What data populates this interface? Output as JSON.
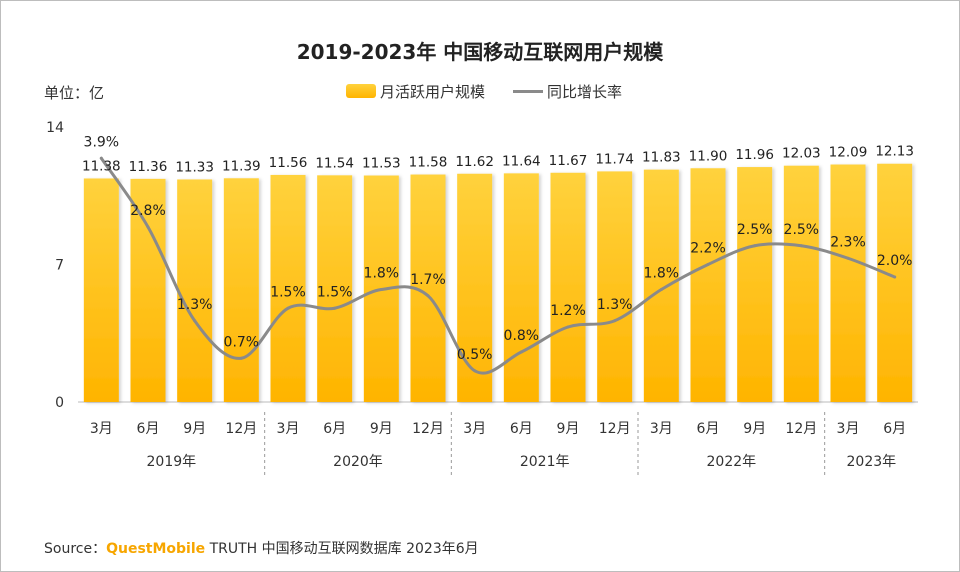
{
  "title": "2019-2023年 中国移动互联网用户规模",
  "unit_label": "单位：亿",
  "legend": {
    "bar_label": "月活跃用户规模",
    "line_label": "同比增长率"
  },
  "source": {
    "prefix": "Source：",
    "brand": "QuestMobile",
    "rest": " TRUTH 中国移动互联网数据库 2023年6月"
  },
  "colors": {
    "bar_top": "#ffd23d",
    "bar_bottom": "#ffb400",
    "line": "#8a8a8a",
    "brand": "#f7a600"
  },
  "chart_data": {
    "type": "bar",
    "categories": [
      "3月",
      "6月",
      "9月",
      "12月",
      "3月",
      "6月",
      "9月",
      "12月",
      "3月",
      "6月",
      "9月",
      "12月",
      "3月",
      "6月",
      "9月",
      "12月",
      "3月",
      "6月"
    ],
    "groups": [
      {
        "label": "2019年",
        "count": 4
      },
      {
        "label": "2020年",
        "count": 4
      },
      {
        "label": "2021年",
        "count": 4
      },
      {
        "label": "2022年",
        "count": 4
      },
      {
        "label": "2023年",
        "count": 2
      }
    ],
    "series": [
      {
        "name": "月活跃用户规模",
        "type": "bar",
        "values": [
          11.38,
          11.36,
          11.33,
          11.39,
          11.56,
          11.54,
          11.53,
          11.58,
          11.62,
          11.64,
          11.67,
          11.74,
          11.83,
          11.9,
          11.96,
          12.03,
          12.09,
          12.13
        ],
        "labels": [
          "11.38",
          "11.36",
          "11.33",
          "11.39",
          "11.56",
          "11.54",
          "11.53",
          "11.58",
          "11.62",
          "11.64",
          "11.67",
          "11.74",
          "11.83",
          "11.90",
          "11.96",
          "12.03",
          "12.09",
          "12.13"
        ]
      },
      {
        "name": "同比增长率",
        "type": "line",
        "values": [
          3.9,
          2.8,
          1.3,
          0.7,
          1.5,
          1.5,
          1.8,
          1.7,
          0.5,
          0.8,
          1.2,
          1.3,
          1.8,
          2.2,
          2.5,
          2.5,
          2.3,
          2.0
        ],
        "labels": [
          "3.9%",
          "2.8%",
          "1.3%",
          "0.7%",
          "1.5%",
          "1.5%",
          "1.8%",
          "1.7%",
          "0.5%",
          "0.8%",
          "1.2%",
          "1.3%",
          "1.8%",
          "2.2%",
          "2.5%",
          "2.5%",
          "2.3%",
          "2.0%"
        ]
      }
    ],
    "y_ticks": [
      "0",
      "7",
      "14"
    ],
    "ylim": [
      0,
      14
    ],
    "line_ylim": [
      0,
      4.4
    ]
  }
}
